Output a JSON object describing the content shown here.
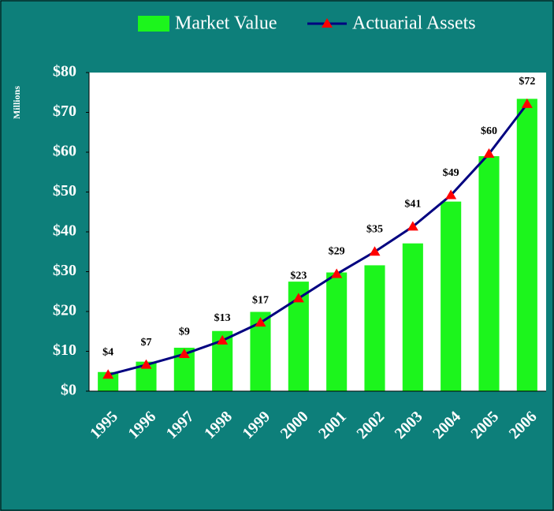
{
  "chart_data": {
    "type": "bar_line",
    "categories": [
      "1995",
      "1996",
      "1997",
      "1998",
      "1999",
      "2000",
      "2001",
      "2002",
      "2003",
      "2004",
      "2005",
      "2006"
    ],
    "series": [
      {
        "name": "Market Value",
        "color": "#1cf51c",
        "type": "bar",
        "values": [
          4.8,
          7.4,
          10.9,
          15.1,
          19.9,
          27.5,
          29.8,
          31.6,
          37.1,
          47.6,
          59.0,
          73.4
        ]
      },
      {
        "name": "Actuarial Assets",
        "color": "#000080",
        "marker_color": "#ff0000",
        "type": "line",
        "values": [
          4.1,
          6.6,
          9.3,
          12.7,
          17.2,
          23.3,
          29.4,
          35,
          41.3,
          49.2,
          59.6,
          72.1
        ],
        "value_labels": [
          "$4",
          "$7",
          "$9",
          "$13",
          "$17",
          "$23",
          "$29",
          "$35",
          "$41",
          "$49",
          "$60",
          "$72"
        ]
      }
    ],
    "y_axis_label": "Millions",
    "ylim": [
      0,
      80
    ],
    "yticks": [
      {
        "value": 0,
        "label": "$0"
      },
      {
        "value": 10,
        "label": "$10"
      },
      {
        "value": 20,
        "label": "$20"
      },
      {
        "value": 30,
        "label": "$30"
      },
      {
        "value": 40,
        "label": "$40"
      },
      {
        "value": 50,
        "label": "$50"
      },
      {
        "value": 60,
        "label": "$60"
      },
      {
        "value": 70,
        "label": "$70"
      },
      {
        "value": 80,
        "label": "$80"
      }
    ],
    "legend": "top"
  }
}
